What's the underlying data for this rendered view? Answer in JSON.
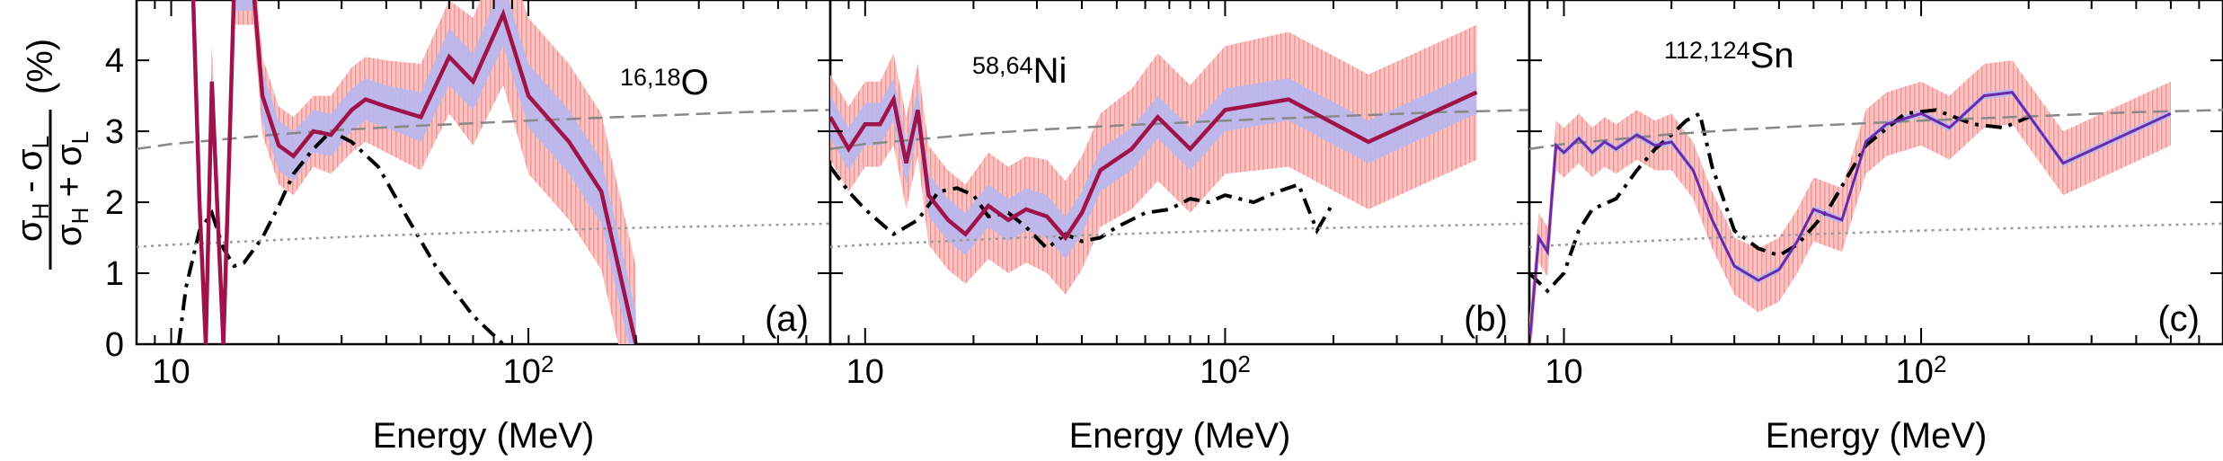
{
  "figure": {
    "y_label": {
      "num_main": "σ",
      "num_sub1": "H",
      "num_mid": " - σ",
      "num_sub2": "L",
      "den_main": "σ",
      "den_sub1": "H",
      "den_mid": " + σ",
      "den_sub2": "L",
      "unit": "(%)"
    },
    "x_label": "Energy (MeV)",
    "colors": {
      "line": "#a0124a",
      "band_outer": "#f8a8a8",
      "band_inner": "#b8b8f0",
      "dashdot": "#000000",
      "dashed": "#888888",
      "dotted": "#999999"
    }
  },
  "chart_data": [
    {
      "type": "line",
      "panel_label": "(a)",
      "nucleus": {
        "sup": "16,18",
        "symbol": "O"
      },
      "xscale": "log",
      "xlim": [
        8,
        700
      ],
      "ylim": [
        0,
        4.85
      ],
      "xticks": [
        {
          "value": 10,
          "base": "10",
          "exp": ""
        },
        {
          "value": 100,
          "base": "10",
          "exp": "2"
        }
      ],
      "yticks": [
        0,
        1,
        2,
        3,
        4
      ],
      "series": [
        {
          "name": "experiment",
          "style": "band",
          "x": [
            11.5,
            12,
            12.5,
            13,
            13.5,
            14,
            14.5,
            15,
            16,
            17,
            18,
            20,
            22,
            25,
            28,
            32,
            35,
            40,
            50,
            60,
            70,
            85,
            100,
            130,
            160,
            200
          ],
          "y": [
            5.0,
            2.0,
            0.0,
            3.7,
            1.8,
            0.0,
            2.5,
            5.0,
            5.0,
            5.0,
            3.5,
            2.8,
            2.65,
            3.0,
            2.95,
            3.3,
            3.45,
            3.35,
            3.2,
            4.05,
            3.7,
            4.65,
            3.5,
            2.85,
            2.15,
            0.0
          ],
          "inner": [
            0.3,
            0.3,
            0.3,
            0.3,
            0.3,
            0.3,
            0.3,
            0.3,
            0.3,
            0.3,
            0.35,
            0.35,
            0.35,
            0.3,
            0.3,
            0.3,
            0.3,
            0.3,
            0.35,
            0.4,
            0.4,
            0.45,
            0.45,
            0.45,
            0.45,
            0.45
          ],
          "outer": [
            0.5,
            0.5,
            0.5,
            0.5,
            0.5,
            0.5,
            0.5,
            0.5,
            0.5,
            0.5,
            0.55,
            0.55,
            0.55,
            0.5,
            0.55,
            0.6,
            0.6,
            0.65,
            0.75,
            0.8,
            0.9,
            1.0,
            1.1,
            1.1,
            1.1,
            1.1
          ]
        },
        {
          "name": "model_dashdot",
          "style": "dashdot",
          "x": [
            10.5,
            11,
            12,
            13,
            14,
            15,
            16,
            18,
            20,
            22,
            25,
            28,
            32,
            38,
            45,
            55,
            70,
            85
          ],
          "y": [
            0.0,
            0.8,
            1.6,
            1.85,
            1.35,
            1.1,
            1.15,
            1.5,
            1.95,
            2.4,
            2.75,
            3.0,
            2.85,
            2.5,
            1.85,
            1.1,
            0.4,
            0.0
          ]
        },
        {
          "name": "model_dashed",
          "style": "dashed",
          "x": [
            8,
            10,
            15,
            20,
            30,
            50,
            100,
            200,
            400,
            700
          ],
          "y": [
            2.75,
            2.82,
            2.9,
            2.96,
            3.02,
            3.08,
            3.15,
            3.21,
            3.27,
            3.3
          ]
        },
        {
          "name": "model_dotted",
          "style": "dotted",
          "x": [
            8,
            10,
            15,
            20,
            30,
            50,
            100,
            200,
            400,
            700
          ],
          "y": [
            1.37,
            1.4,
            1.44,
            1.47,
            1.51,
            1.55,
            1.6,
            1.64,
            1.67,
            1.7
          ]
        }
      ]
    },
    {
      "type": "line",
      "panel_label": "(b)",
      "nucleus": {
        "sup": "58,64",
        "symbol": "Ni"
      },
      "xscale": "log",
      "xlim": [
        8,
        700
      ],
      "ylim": [
        0,
        4.85
      ],
      "xticks": [
        {
          "value": 10,
          "base": "10",
          "exp": ""
        },
        {
          "value": 100,
          "base": "10",
          "exp": "2"
        }
      ],
      "yticks": [
        0,
        1,
        2,
        3,
        4
      ],
      "series": [
        {
          "name": "experiment",
          "style": "band",
          "x": [
            8,
            9,
            10,
            11,
            12,
            13,
            14,
            15,
            17,
            19,
            22,
            25,
            28,
            32,
            36,
            40,
            45,
            55,
            65,
            80,
            100,
            150,
            250,
            500
          ],
          "y": [
            3.2,
            2.75,
            3.1,
            3.1,
            3.45,
            2.55,
            3.3,
            2.1,
            1.75,
            1.55,
            1.95,
            1.75,
            1.9,
            1.8,
            1.5,
            1.85,
            2.45,
            2.75,
            3.2,
            2.75,
            3.3,
            3.45,
            2.85,
            3.55
          ],
          "inner": [
            0.3,
            0.3,
            0.3,
            0.3,
            0.3,
            0.3,
            0.3,
            0.3,
            0.3,
            0.3,
            0.3,
            0.3,
            0.3,
            0.3,
            0.3,
            0.3,
            0.3,
            0.3,
            0.3,
            0.3,
            0.3,
            0.3,
            0.3,
            0.3
          ],
          "outer": [
            0.6,
            0.6,
            0.6,
            0.6,
            0.65,
            0.65,
            0.65,
            0.7,
            0.7,
            0.7,
            0.75,
            0.75,
            0.75,
            0.8,
            0.8,
            0.8,
            0.8,
            0.85,
            0.9,
            0.9,
            0.9,
            0.95,
            0.95,
            0.95
          ]
        },
        {
          "name": "model_dashdot",
          "style": "dashdot",
          "x": [
            8,
            9,
            10,
            12,
            14,
            16,
            18,
            20,
            22,
            25,
            28,
            32,
            36,
            40,
            45,
            50,
            60,
            70,
            80,
            90,
            100,
            120,
            140,
            160,
            180,
            200
          ],
          "y": [
            2.5,
            2.15,
            1.9,
            1.55,
            1.75,
            2.15,
            2.2,
            2.1,
            1.8,
            1.85,
            1.65,
            1.35,
            1.55,
            1.45,
            1.5,
            1.65,
            1.85,
            1.9,
            2.05,
            2.0,
            2.1,
            2.0,
            2.15,
            2.25,
            1.6,
            2.0
          ]
        },
        {
          "name": "model_dashed",
          "style": "dashed",
          "x": [
            8,
            10,
            15,
            20,
            30,
            50,
            100,
            200,
            400,
            700
          ],
          "y": [
            2.75,
            2.82,
            2.9,
            2.96,
            3.02,
            3.08,
            3.15,
            3.21,
            3.27,
            3.3
          ]
        },
        {
          "name": "model_dotted",
          "style": "dotted",
          "x": [
            8,
            10,
            15,
            20,
            30,
            50,
            100,
            200,
            400,
            700
          ],
          "y": [
            1.37,
            1.4,
            1.44,
            1.47,
            1.51,
            1.55,
            1.6,
            1.64,
            1.67,
            1.7
          ]
        }
      ]
    },
    {
      "type": "line",
      "panel_label": "(c)",
      "nucleus": {
        "sup": "112,124",
        "symbol": "Sn"
      },
      "xscale": "log",
      "xlim": [
        8,
        700
      ],
      "ylim": [
        0,
        4.85
      ],
      "xticks": [
        {
          "value": 10,
          "base": "10",
          "exp": ""
        },
        {
          "value": 100,
          "base": "10",
          "exp": "2"
        }
      ],
      "yticks": [
        0,
        1,
        2,
        3,
        4
      ],
      "series": [
        {
          "name": "experiment",
          "style": "band",
          "x": [
            8,
            8.5,
            9,
            9.5,
            10,
            11,
            12,
            13,
            14,
            16,
            18,
            20,
            23,
            26,
            30,
            35,
            40,
            45,
            50,
            60,
            70,
            80,
            100,
            120,
            150,
            180,
            250,
            500
          ],
          "y": [
            0.0,
            1.5,
            1.3,
            2.8,
            2.7,
            2.9,
            2.7,
            2.85,
            2.75,
            2.95,
            2.8,
            2.85,
            2.45,
            1.75,
            1.1,
            0.9,
            1.05,
            1.45,
            1.9,
            1.75,
            2.85,
            3.1,
            3.25,
            3.05,
            3.5,
            3.55,
            2.55,
            3.25
          ],
          "inner": [
            0.05,
            0.05,
            0.05,
            0.05,
            0.05,
            0.05,
            0.05,
            0.05,
            0.05,
            0.05,
            0.05,
            0.05,
            0.05,
            0.05,
            0.05,
            0.05,
            0.05,
            0.05,
            0.05,
            0.05,
            0.05,
            0.05,
            0.05,
            0.05,
            0.05,
            0.05,
            0.05,
            0.05
          ],
          "outer": [
            0.35,
            0.35,
            0.35,
            0.35,
            0.35,
            0.35,
            0.35,
            0.35,
            0.35,
            0.35,
            0.35,
            0.4,
            0.4,
            0.4,
            0.4,
            0.45,
            0.45,
            0.45,
            0.45,
            0.45,
            0.45,
            0.45,
            0.45,
            0.45,
            0.45,
            0.45,
            0.45,
            0.45
          ]
        },
        {
          "name": "model_dashdot",
          "style": "dashdot",
          "x": [
            8,
            9,
            10,
            11,
            12,
            14,
            16,
            18,
            20,
            22,
            24,
            26,
            30,
            35,
            40,
            45,
            55,
            70,
            90,
            110,
            140,
            170,
            200
          ],
          "y": [
            1.0,
            0.75,
            1.0,
            1.6,
            1.9,
            2.05,
            2.45,
            2.75,
            2.95,
            3.15,
            3.25,
            2.5,
            1.6,
            1.35,
            1.25,
            1.4,
            1.9,
            2.8,
            3.25,
            3.3,
            3.1,
            3.05,
            3.2
          ]
        },
        {
          "name": "model_dashed",
          "style": "dashed",
          "x": [
            8,
            10,
            15,
            20,
            30,
            50,
            100,
            200,
            400,
            700
          ],
          "y": [
            2.75,
            2.82,
            2.9,
            2.96,
            3.02,
            3.08,
            3.15,
            3.21,
            3.27,
            3.3
          ]
        },
        {
          "name": "model_dotted",
          "style": "dotted",
          "x": [
            8,
            10,
            15,
            20,
            30,
            50,
            100,
            200,
            400,
            700
          ],
          "y": [
            1.37,
            1.4,
            1.44,
            1.47,
            1.51,
            1.55,
            1.6,
            1.64,
            1.67,
            1.7
          ]
        }
      ]
    }
  ]
}
